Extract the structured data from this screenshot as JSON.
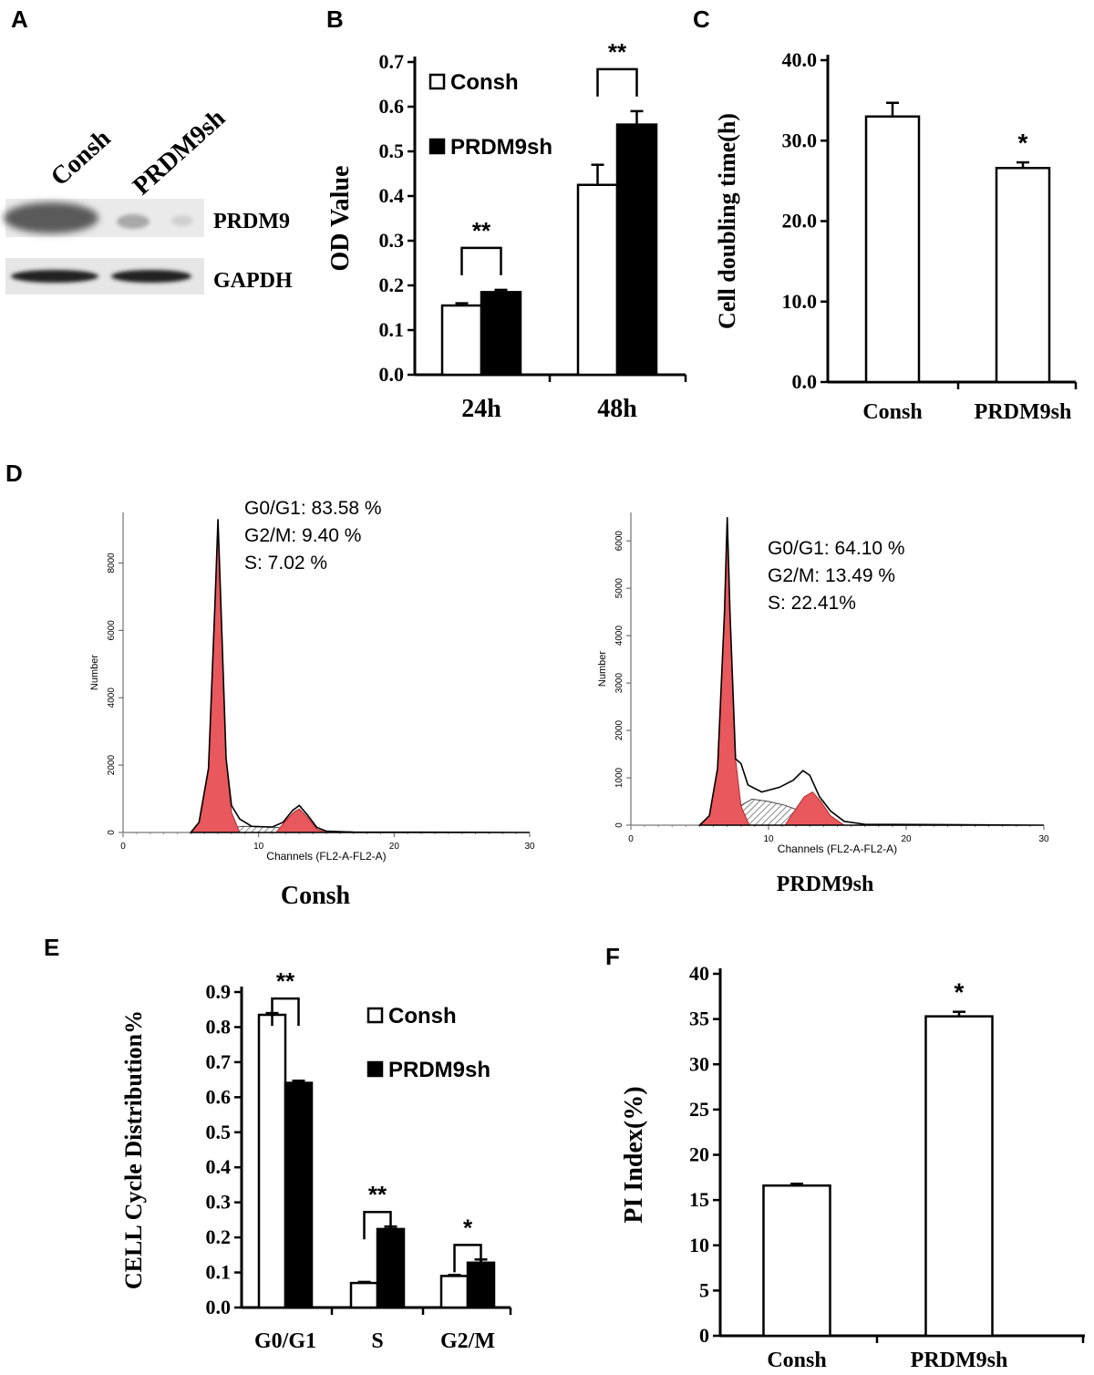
{
  "panel_letters": {
    "a": "A",
    "b": "B",
    "c": "C",
    "d": "D",
    "e": "E",
    "f": "F"
  },
  "colors": {
    "axis": "#000000",
    "bar_consh": "#ffffff",
    "bar_prdm9sh": "#000000",
    "histogram_peak_fill": "#e8585c",
    "histogram_peak_stroke": "#b02a2e"
  },
  "western_blot": {
    "lane_labels": [
      "Consh",
      "PRDM9sh"
    ],
    "band_labels": [
      "PRDM9",
      "GAPDH"
    ]
  },
  "chart_data": [
    {
      "id": "B",
      "type": "bar",
      "ylabel": "OD Value",
      "categories": [
        "24h",
        "48h"
      ],
      "ylim": [
        0,
        0.7
      ],
      "yticks": [
        0.0,
        0.1,
        0.2,
        0.3,
        0.4,
        0.5,
        0.6,
        0.7
      ],
      "ytick_labels": [
        "0.0",
        "0.1",
        "0.2",
        "0.3",
        "0.4",
        "0.5",
        "0.6",
        "0.7"
      ],
      "series": [
        {
          "name": "Consh",
          "values": [
            0.155,
            0.425
          ],
          "errors": [
            0.005,
            0.045
          ]
        },
        {
          "name": "PRDM9sh",
          "values": [
            0.185,
            0.56
          ],
          "errors": [
            0.005,
            0.03
          ]
        }
      ],
      "significance": [
        "**",
        "**"
      ],
      "legend": "top-left"
    },
    {
      "id": "C",
      "type": "bar",
      "ylabel": "Cell doubling time(h)",
      "categories": [
        "Consh",
        "PRDM9sh"
      ],
      "ylim": [
        0,
        40
      ],
      "yticks": [
        0,
        10,
        20,
        30,
        40
      ],
      "ytick_labels": [
        "0.0",
        "10.0",
        "20.0",
        "30.0",
        "40.0"
      ],
      "values": [
        33.0,
        26.6
      ],
      "errors": [
        1.7,
        0.7
      ],
      "significance": [
        "",
        "*"
      ]
    },
    {
      "id": "D1",
      "type": "area",
      "title": "Consh",
      "xlabel": "Channels (FL2-A-FL2-A)",
      "ylabel": "Number",
      "xlim": [
        0,
        30
      ],
      "ylim": [
        0,
        9500
      ],
      "xticks": [
        0,
        10,
        20,
        30
      ],
      "yticks": [
        0,
        2000,
        4000,
        6000,
        8000
      ],
      "annotations": [
        "G0/G1: 83.58 %",
        "G2/M: 9.40 %",
        "S: 7.02 %"
      ],
      "envelope": [
        [
          5,
          0
        ],
        [
          5.6,
          300
        ],
        [
          6.3,
          1900
        ],
        [
          6.8,
          7000
        ],
        [
          7.0,
          9300
        ],
        [
          7.2,
          7000
        ],
        [
          7.6,
          2200
        ],
        [
          8.0,
          800
        ],
        [
          8.6,
          400
        ],
        [
          9.5,
          180
        ],
        [
          11,
          160
        ],
        [
          11.8,
          300
        ],
        [
          12.5,
          650
        ],
        [
          13.0,
          800
        ],
        [
          13.6,
          520
        ],
        [
          14.3,
          150
        ],
        [
          15,
          40
        ],
        [
          17,
          10
        ],
        [
          30,
          0
        ]
      ],
      "g1_peak": [
        [
          5,
          0
        ],
        [
          5.6,
          300
        ],
        [
          6.3,
          1900
        ],
        [
          6.8,
          7000
        ],
        [
          7.0,
          9300
        ],
        [
          7.2,
          7000
        ],
        [
          7.6,
          2200
        ],
        [
          8.0,
          600
        ],
        [
          8.6,
          0
        ]
      ],
      "g2_peak": [
        [
          11.3,
          0
        ],
        [
          12.0,
          350
        ],
        [
          12.6,
          600
        ],
        [
          13.0,
          700
        ],
        [
          13.6,
          450
        ],
        [
          14.3,
          100
        ],
        [
          15,
          0
        ]
      ],
      "s_phase": [
        [
          7,
          0
        ],
        [
          7.8,
          120
        ],
        [
          8.8,
          180
        ],
        [
          10,
          170
        ],
        [
          11,
          160
        ],
        [
          12,
          130
        ],
        [
          13.5,
          60
        ],
        [
          14.5,
          0
        ]
      ]
    },
    {
      "id": "D2",
      "type": "area",
      "title": "PRDM9sh",
      "xlabel": "Channels (FL2-A-FL2-A)",
      "ylabel": "Number",
      "xlim": [
        0,
        30
      ],
      "ylim": [
        0,
        6600
      ],
      "xticks": [
        0,
        10,
        20,
        30
      ],
      "yticks": [
        0,
        1000,
        2000,
        3000,
        4000,
        5000,
        6000
      ],
      "annotations": [
        "G0/G1: 64.10 %",
        "G2/M: 13.49 %",
        "S: 22.41%"
      ],
      "envelope": [
        [
          5,
          0
        ],
        [
          5.7,
          200
        ],
        [
          6.3,
          1200
        ],
        [
          6.8,
          4500
        ],
        [
          7.0,
          6500
        ],
        [
          7.2,
          4500
        ],
        [
          7.6,
          1400
        ],
        [
          8.0,
          1300
        ],
        [
          8.5,
          850
        ],
        [
          9.5,
          700
        ],
        [
          10.8,
          800
        ],
        [
          11.8,
          950
        ],
        [
          12.5,
          1150
        ],
        [
          13.0,
          1050
        ],
        [
          13.7,
          600
        ],
        [
          14.5,
          300
        ],
        [
          15.5,
          80
        ],
        [
          17,
          20
        ],
        [
          30,
          0
        ]
      ],
      "g1_peak": [
        [
          5,
          0
        ],
        [
          5.7,
          200
        ],
        [
          6.3,
          1200
        ],
        [
          6.8,
          4500
        ],
        [
          7.0,
          6500
        ],
        [
          7.2,
          4500
        ],
        [
          7.6,
          1400
        ],
        [
          8.0,
          400
        ],
        [
          8.6,
          0
        ]
      ],
      "g2_peak": [
        [
          11.2,
          0
        ],
        [
          12.0,
          350
        ],
        [
          12.6,
          600
        ],
        [
          13.2,
          700
        ],
        [
          13.8,
          500
        ],
        [
          14.5,
          200
        ],
        [
          15.5,
          0
        ]
      ],
      "s_phase": [
        [
          6.8,
          0
        ],
        [
          7.6,
          350
        ],
        [
          8.8,
          550
        ],
        [
          10,
          500
        ],
        [
          11.2,
          420
        ],
        [
          12.3,
          300
        ],
        [
          13.5,
          150
        ],
        [
          14.5,
          0
        ]
      ]
    },
    {
      "id": "E",
      "type": "bar",
      "ylabel": "CELL Cycle  Distribution%",
      "categories": [
        "G0/G1",
        "S",
        "G2/M"
      ],
      "ylim": [
        0,
        0.9
      ],
      "yticks": [
        0.0,
        0.1,
        0.2,
        0.3,
        0.4,
        0.5,
        0.6,
        0.7,
        0.8,
        0.9
      ],
      "ytick_labels": [
        "0.0",
        "0.1",
        "0.2",
        "0.3",
        "0.4",
        "0.5",
        "0.6",
        "0.7",
        "0.8",
        "0.9"
      ],
      "series": [
        {
          "name": "Consh",
          "values": [
            0.835,
            0.07,
            0.09
          ],
          "errors": [
            0.005,
            0.003,
            0.003
          ]
        },
        {
          "name": "PRDM9sh",
          "values": [
            0.641,
            0.224,
            0.128
          ],
          "errors": [
            0.006,
            0.007,
            0.009
          ]
        }
      ],
      "significance": [
        "**",
        "**",
        "*"
      ],
      "legend": "top-right"
    },
    {
      "id": "F",
      "type": "bar",
      "ylabel": "PI Index(%)",
      "categories": [
        "Consh",
        "PRDM9sh"
      ],
      "ylim": [
        0,
        40
      ],
      "yticks": [
        0,
        5,
        10,
        15,
        20,
        25,
        30,
        35,
        40
      ],
      "ytick_labels": [
        "0",
        "5",
        "10",
        "15",
        "20",
        "25",
        "30",
        "35",
        "40"
      ],
      "values": [
        16.6,
        35.3
      ],
      "errors": [
        0.2,
        0.5
      ],
      "significance": [
        "",
        "*"
      ]
    }
  ]
}
